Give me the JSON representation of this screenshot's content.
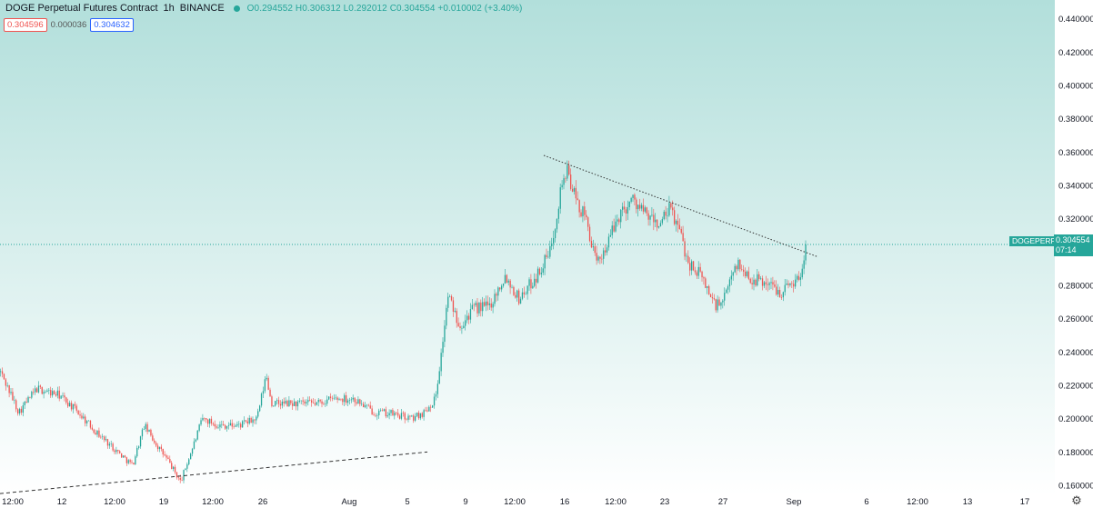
{
  "header": {
    "symbol": "DOGE Perpetual Futures Contract",
    "interval": "1h",
    "exchange": "BINANCE",
    "ohlc": "O0.294552 H0.306312 L0.292012 C0.304554 +0.010002 (+3.40%)"
  },
  "bidask": {
    "bid": "0.304596",
    "spread": "0.000036",
    "ask": "0.304632"
  },
  "last_price": {
    "symbol_label": "DOGEPERP",
    "price": "0.304554",
    "countdown": "07:14"
  },
  "colors": {
    "up": "#26a69a",
    "down": "#ef5350",
    "bg_top": "#b2dfdb",
    "bg_bottom": "#ffffff",
    "grid": "#dcecea",
    "axis_text": "#131722",
    "last_line": "#26a69a"
  },
  "chart_data": {
    "type": "candlestick",
    "interval": "1h",
    "y_axis": {
      "position": "right",
      "ticks": [
        "0.160000",
        "0.180000",
        "0.200000",
        "0.220000",
        "0.240000",
        "0.260000",
        "0.280000",
        "0.300000",
        "0.320000",
        "0.340000",
        "0.360000",
        "0.380000",
        "0.400000",
        "0.420000",
        "0.440000"
      ],
      "ylim": [
        0.154,
        0.448
      ]
    },
    "x_axis": {
      "ticks": [
        "12:00",
        "12",
        "12:00",
        "19",
        "12:00",
        "26",
        "Aug",
        "5",
        "9",
        "12:00",
        "16",
        "12:00",
        "23",
        "27",
        "Sep",
        "6",
        "12:00",
        "13",
        "17"
      ],
      "xlim": [
        0,
        1160
      ]
    },
    "grid": false,
    "last_price_line": 0.304554,
    "path": [
      [
        0,
        0.228
      ],
      [
        20,
        0.204
      ],
      [
        40,
        0.218
      ],
      [
        65,
        0.214
      ],
      [
        85,
        0.204
      ],
      [
        105,
        0.192
      ],
      [
        125,
        0.182
      ],
      [
        145,
        0.172
      ],
      [
        158,
        0.196
      ],
      [
        172,
        0.184
      ],
      [
        185,
        0.174
      ],
      [
        198,
        0.162
      ],
      [
        212,
        0.184
      ],
      [
        222,
        0.2
      ],
      [
        240,
        0.196
      ],
      [
        262,
        0.196
      ],
      [
        282,
        0.2
      ],
      [
        292,
        0.226
      ],
      [
        298,
        0.209
      ],
      [
        322,
        0.209
      ],
      [
        346,
        0.209
      ],
      [
        366,
        0.212
      ],
      [
        388,
        0.212
      ],
      [
        410,
        0.204
      ],
      [
        430,
        0.203
      ],
      [
        452,
        0.2
      ],
      [
        466,
        0.204
      ],
      [
        478,
        0.212
      ],
      [
        484,
        0.236
      ],
      [
        492,
        0.274
      ],
      [
        505,
        0.256
      ],
      [
        520,
        0.266
      ],
      [
        538,
        0.268
      ],
      [
        555,
        0.286
      ],
      [
        570,
        0.272
      ],
      [
        590,
        0.286
      ],
      [
        604,
        0.3
      ],
      [
        610,
        0.318
      ],
      [
        618,
        0.344
      ],
      [
        624,
        0.348
      ],
      [
        632,
        0.332
      ],
      [
        645,
        0.318
      ],
      [
        655,
        0.292
      ],
      [
        668,
        0.306
      ],
      [
        680,
        0.322
      ],
      [
        695,
        0.332
      ],
      [
        710,
        0.322
      ],
      [
        725,
        0.316
      ],
      [
        736,
        0.326
      ],
      [
        746,
        0.314
      ],
      [
        756,
        0.294
      ],
      [
        770,
        0.286
      ],
      [
        786,
        0.268
      ],
      [
        795,
        0.27
      ],
      [
        808,
        0.294
      ],
      [
        825,
        0.284
      ],
      [
        842,
        0.282
      ],
      [
        858,
        0.276
      ],
      [
        870,
        0.282
      ],
      [
        880,
        0.285
      ],
      [
        886,
        0.304
      ]
    ],
    "annotations": [
      {
        "type": "trendline",
        "style": "dotted",
        "from": [
          598,
          0.358
        ],
        "to": [
          900,
          0.297
        ]
      },
      {
        "type": "trendline",
        "style": "dashed",
        "from": [
          0,
          0.155
        ],
        "to": [
          470,
          0.18
        ]
      }
    ]
  },
  "settings_icon": "gear-icon"
}
